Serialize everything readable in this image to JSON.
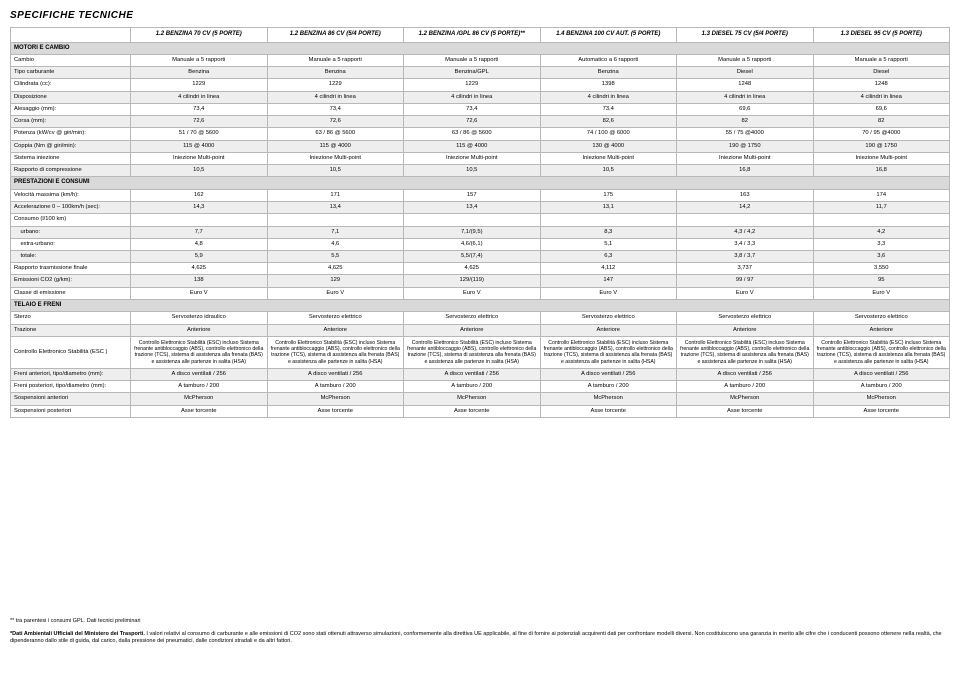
{
  "title": "SPECIFICHE TECNICHE",
  "columns": [
    "1.2 BENZINA 70 CV (5 PORTE)",
    "1.2 BENZINA 86 CV (5/4 PORTE)",
    "1.2 BENZINA /GPL 86 CV (5 PORTE)**",
    "1.4 BENZINA 100 CV AUT. (5 PORTE)",
    "1.3 DIESEL 75 CV (5/4 PORTE)",
    "1.3 DIESEL 95 CV (5 PORTE)"
  ],
  "sections": [
    {
      "title": "MOTORI E CAMBIO",
      "rows": [
        {
          "label": "Cambio",
          "alt": false,
          "cells": [
            "Manuale a 5 rapporti",
            "Manuale a 5 rapporti",
            "Manuale a 5 rapporti",
            "Automatico a 6 rapporti",
            "Manuale a 5 rapporti",
            "Manuale a 5 rapporti"
          ]
        },
        {
          "label": "Tipo carburante",
          "alt": true,
          "cells": [
            "Benzina",
            "Benzina",
            "Benzina/GPL",
            "Benzina",
            "Diesel",
            "Diesel"
          ]
        },
        {
          "label": "Cilindrata (cc):",
          "alt": false,
          "cells": [
            "1229",
            "1229",
            "1229",
            "1398",
            "1248",
            "1248"
          ]
        },
        {
          "label": "Disposizione",
          "alt": true,
          "cells": [
            "4 cilindri in linea",
            "4 cilindri in linea",
            "4 cilindri in linea",
            "4 cilindri in linea",
            "4 cilindri in linea",
            "4 cilindri in linea"
          ]
        },
        {
          "label": "Alesaggio (mm):",
          "alt": false,
          "cells": [
            "73,4",
            "73,4",
            "73,4",
            "73,4",
            "69,6",
            "69,6"
          ]
        },
        {
          "label": "Corsa (mm):",
          "alt": true,
          "cells": [
            "72,6",
            "72,6",
            "72,6",
            "82,6",
            "82",
            "82"
          ]
        },
        {
          "label": "Potenza (kW/cv @ giri/min):",
          "alt": false,
          "cells": [
            "51 / 70 @ 5600",
            "63 / 86 @ 5600",
            "63 / 86 @ 5600",
            "74 / 100 @ 6000",
            "55 / 75 @4000",
            "70 / 95 @4000"
          ]
        },
        {
          "label": "Coppia (Nm @ giri/min):",
          "alt": true,
          "cells": [
            "115 @ 4000",
            "115 @ 4000",
            "115 @ 4000",
            "130 @ 4000",
            "190 @ 1750",
            "190 @ 1750"
          ]
        },
        {
          "label": "Sistema iniezione",
          "alt": false,
          "cells": [
            "Iniezione Multi-point",
            "Iniezione Multi-point",
            "Iniezione Multi-point",
            "Iniezione Multi-point",
            "Iniezione Multi-point",
            "Iniezione Multi-point"
          ]
        },
        {
          "label": "Rapporto di compressione",
          "alt": true,
          "cells": [
            "10,5",
            "10,5",
            "10,5",
            "10,5",
            "16,8",
            "16,8"
          ]
        }
      ]
    },
    {
      "title": "PRESTAZIONI E CONSUMI",
      "rows": [
        {
          "label": "Velocità massima (km/h):",
          "alt": false,
          "cells": [
            "162",
            "171",
            "157",
            "175",
            "163",
            "174"
          ]
        },
        {
          "label": "Accelerazione 0 – 100km/h (sec):",
          "alt": true,
          "cells": [
            "14,3",
            "13,4",
            "13,4",
            "13,1",
            "14,2",
            "11,7"
          ]
        },
        {
          "label": "Consumo (l/100 km)",
          "alt": false,
          "cells": [
            "",
            "",
            "",
            "",
            "",
            ""
          ]
        },
        {
          "label": "    urbano:",
          "alt": true,
          "cells": [
            "7,7",
            "7,1",
            "7,1/(9,5)",
            "8,3",
            "4,3 / 4,2",
            "4,2"
          ]
        },
        {
          "label": "    extra-urbano:",
          "alt": false,
          "cells": [
            "4,8",
            "4,6",
            "4,6/(6,1)",
            "5,1",
            "3,4 / 3,3",
            "3,3"
          ]
        },
        {
          "label": "    totale:",
          "alt": true,
          "cells": [
            "5,9",
            "5,5",
            "5,5/(7,4)",
            "6,3",
            "3,8 / 3,7",
            "3,6"
          ]
        },
        {
          "label": "Rapporto trasmissione finale",
          "alt": false,
          "cells": [
            "4,625",
            "4,625",
            "4,625",
            "4,112",
            "3,737",
            "3,550"
          ]
        },
        {
          "label": "Emissioni CO2 (g/km):",
          "alt": true,
          "cells": [
            "138",
            "129",
            "129/(119)",
            "147",
            "99 / 97",
            "95"
          ]
        },
        {
          "label": "Classe di emissione",
          "alt": false,
          "cells": [
            "Euro V",
            "Euro V",
            "Euro V",
            "Euro V",
            "Euro V",
            "Euro V"
          ]
        }
      ]
    },
    {
      "title": "TELAIO E FRENI",
      "rows": [
        {
          "label": "Sterzo",
          "alt": false,
          "cells": [
            "Servosterzo idraulico",
            "Servosterzo elettrico",
            "Servosterzo elettrico",
            "Servosterzo elettrico",
            "Servosterzo elettrico",
            "Servosterzo elettrico"
          ]
        },
        {
          "label": "Trazione",
          "alt": true,
          "cells": [
            "Anteriore",
            "Anteriore",
            "Anteriore",
            "Anteriore",
            "Anteriore",
            "Anteriore"
          ]
        },
        {
          "label": "Controllo Elettronico Stabilità (ESC )",
          "alt": false,
          "esc": true,
          "cells": [
            "Controllo Elettronico Stabilità (ESC) incluso Sistema frenante antibloccaggio (ABS), controllo elettronico della trazione (TCS), sistema di assistenza alla frenata (BAS) e assistenza alle partenze in salita (HSA)",
            "Controllo Elettronico Stabilità (ESC) incluso Sistema frenante antibloccaggio (ABS), controllo elettronico della trazione (TCS), sistema di assistenza alla frenata (BAS) e assistenza alle partenze in salita (HSA)",
            "Controllo Elettronico Stabilità (ESC) incluso Sistema frenante antibloccaggio (ABS), controllo elettronico della trazione (TCS), sistema di assistenza alla frenata (BAS) e assistenza alle partenze in salita (HSA)",
            "Controllo Elettronico Stabilità (ESC) incluso Sistema frenante antibloccaggio (ABS), controllo elettronico della trazione (TCS), sistema di assistenza alla frenata (BAS) e assistenza alle partenze in salita (HSA)",
            "Controllo Elettronico Stabilità (ESC) incluso Sistema frenante antibloccaggio (ABS), controllo elettronico della trazione (TCS), sistema di assistenza alla frenata (BAS) e assistenza alle partenze in salita (HSA)",
            "Controllo Elettronico Stabilità (ESC) incluso Sistema frenante antibloccaggio (ABS), controllo elettronico della trazione (TCS), sistema di assistenza alla frenata (BAS) e assistenza alle partenze in salita (HSA)"
          ]
        },
        {
          "label": "Freni anteriori, tipo/diametro (mm):",
          "alt": true,
          "cells": [
            "A disco ventilati / 256",
            "A disco ventilati / 256",
            "A disco ventilati / 256",
            "A disco ventilati / 256",
            "A disco ventilati / 256",
            "A disco ventilati / 256"
          ]
        },
        {
          "label": "Freni posteriori, tipo/diametro (mm):",
          "alt": false,
          "cells": [
            "A tamburo / 200",
            "A tamburo / 200",
            "A tamburo / 200",
            "A tamburo / 200",
            "A tamburo / 200",
            "A tamburo / 200"
          ]
        },
        {
          "label": "Sospensioni anteriori",
          "alt": true,
          "cells": [
            "McPherson",
            "McPherson",
            "McPherson",
            "McPherson",
            "McPherson",
            "McPherson"
          ]
        },
        {
          "label": "Sospensioni posteriori",
          "alt": false,
          "cells": [
            "Asse torcente",
            "Asse torcente",
            "Asse torcente",
            "Asse torcente",
            "Asse torcente",
            "Asse torcente"
          ]
        }
      ]
    }
  ],
  "footnote1": "** tra parentesi i consumi GPL. Dati tecnici preliminari",
  "footnote2a": "*Dati Ambientali Ufficiali del Ministero dei Trasporti.",
  "footnote2b": " I valori relativi al consumo di carburante e alle emissioni di CO2 sono stati ottenuti attraverso simulazioni, conformemente alla direttiva UE applicabile, al fine di fornire ai potenziali acquirenti dati per confrontare modelli diversi. Non costituiscono una garanzia in merito alle cifre che i conducenti possono ottenere nella realtà, che dipenderanno dallo stile di guida, dal carico, dalla pressione dei pneumatici, dalle condizioni stradali e da altri fattori."
}
